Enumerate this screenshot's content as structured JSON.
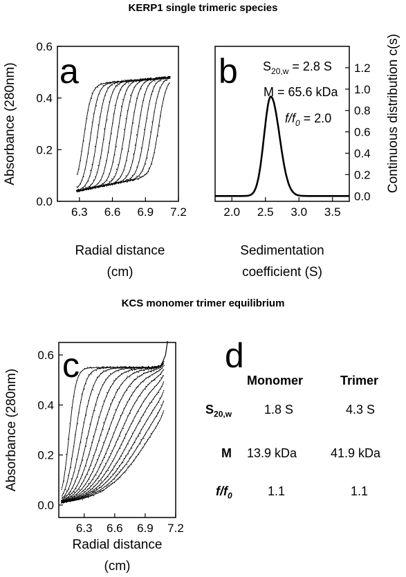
{
  "section_titles": {
    "top": "KERP1 single trimeric species",
    "bottom": "KCS monomer trimer equilibrium"
  },
  "table_d": {
    "letter": "d",
    "col_headers": [
      "Monomer",
      "Trimer"
    ],
    "rows": [
      {
        "label_main": "S",
        "label_sub": "20,w",
        "values": [
          "1.8 S",
          "4.3 S"
        ]
      },
      {
        "label_main": "M",
        "label_sub": "",
        "values": [
          "13.9 kDa",
          "41.9 kDa"
        ]
      },
      {
        "label_main": "f/f",
        "label_sub": "0",
        "values": [
          "1.1",
          "1.1"
        ]
      }
    ]
  },
  "chart_data": [
    {
      "panel": "a",
      "type": "scatter",
      "xlabel": "Radial distance",
      "xlabel_unit": "(cm)",
      "ylabel": "Absorbance (280nm)",
      "xlim": [
        6.1,
        7.2
      ],
      "ylim": [
        0.0,
        0.6
      ],
      "xticks": [
        "6.3",
        "6.6",
        "6.9",
        "7.2"
      ],
      "yticks": [
        "0.0",
        "0.2",
        "0.4",
        "0.6"
      ],
      "curves": {
        "count": 12,
        "x_start": 6.28,
        "x_end": 7.12,
        "baseline": 0.04,
        "baseline_rise": 0.07,
        "plateau": 0.45,
        "plateau_rise": 0.03,
        "first_boundary": 6.34,
        "last_boundary": 7.02,
        "boundary_width": 0.035
      }
    },
    {
      "panel": "b",
      "type": "line",
      "xlabel": "Sedimentation",
      "xlabel_line2": "coefficient (S)",
      "ylabel": "Continuous distribution c(s)",
      "xlim": [
        1.75,
        3.75
      ],
      "ylim": [
        -0.05,
        1.4
      ],
      "xticks": [
        "2.0",
        "2.5",
        "3.0",
        "3.5"
      ],
      "yticks": [
        "0.0",
        "0.2",
        "0.4",
        "0.6",
        "0.8",
        "1.0",
        "1.2"
      ],
      "peak": {
        "center": 2.58,
        "height": 0.93,
        "sigma_left": 0.1,
        "sigma_right": 0.13
      },
      "annotations": [
        {
          "main": "S",
          "sub": "20,w",
          "rest": " = 2.8 S"
        },
        {
          "main": "M = 65.6 kDa",
          "sub": "",
          "rest": ""
        },
        {
          "main": "f/f",
          "sub": "0",
          "rest": " = 2.0"
        }
      ]
    },
    {
      "panel": "c",
      "type": "scatter",
      "xlabel": "Radial distance",
      "xlabel_unit": "(cm)",
      "ylabel": "Absorbance (280nm)",
      "xlim": [
        6.05,
        7.2
      ],
      "ylim": [
        -0.05,
        0.65
      ],
      "xticks": [
        "6.3",
        "6.6",
        "6.9",
        "7.2"
      ],
      "yticks": [
        "0.0",
        "0.2",
        "0.4",
        "0.6"
      ],
      "curves": {
        "count": 14,
        "x_start": 6.08,
        "x_end": 7.08,
        "baseline": 0.0,
        "plateau": 0.55,
        "first_boundary": 6.15,
        "last_boundary": 6.95,
        "first_width": 0.035,
        "last_width": 0.22
      }
    }
  ]
}
